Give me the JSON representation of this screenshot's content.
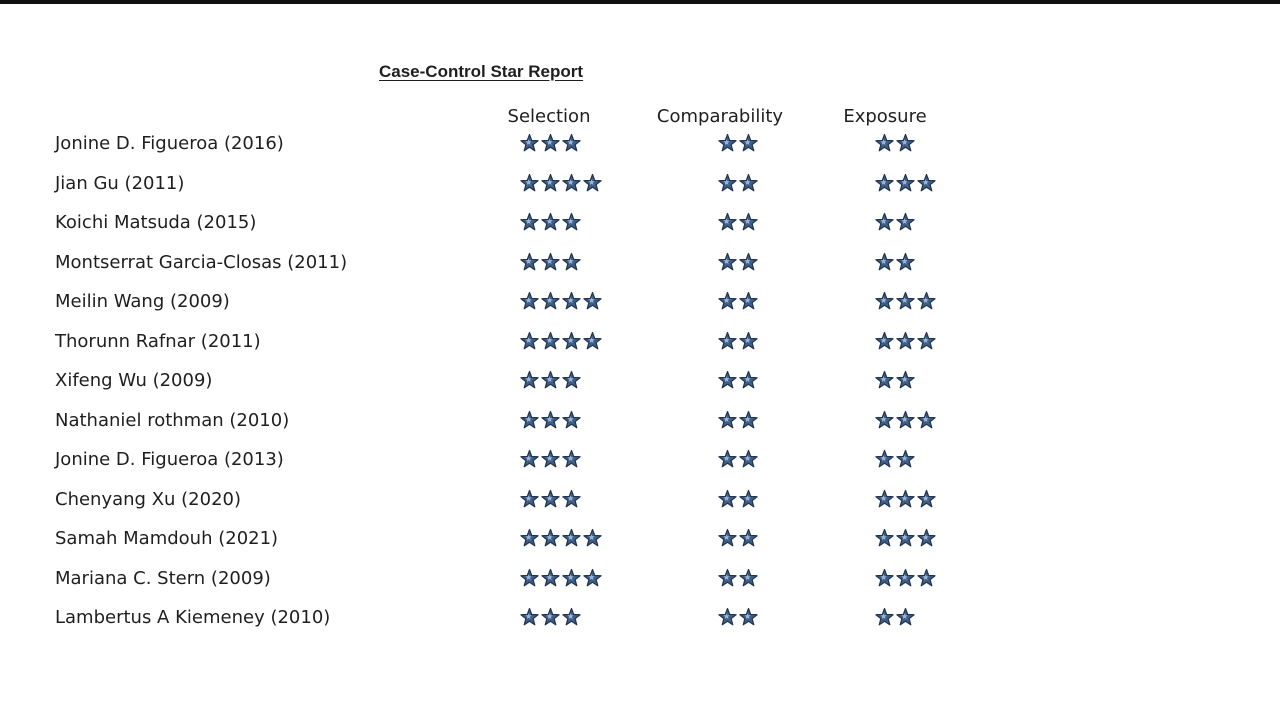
{
  "report": {
    "title": "Case-Control Star Report"
  },
  "columns": {
    "selection": "Selection",
    "comparability": "Comparability",
    "exposure": "Exposure"
  },
  "star_color": "#3f5f86",
  "rows": [
    {
      "study": "Jonine D. Figueroa (2016)",
      "selection": 3,
      "comparability": 2,
      "exposure": 2
    },
    {
      "study": "Jian Gu (2011)",
      "selection": 4,
      "comparability": 2,
      "exposure": 3
    },
    {
      "study": "Koichi Matsuda (2015)",
      "selection": 3,
      "comparability": 2,
      "exposure": 2
    },
    {
      "study": "Montserrat Garcia-Closas (2011)",
      "selection": 3,
      "comparability": 2,
      "exposure": 2
    },
    {
      "study": "Meilin Wang (2009)",
      "selection": 4,
      "comparability": 2,
      "exposure": 3
    },
    {
      "study": "Thorunn Rafnar (2011)",
      "selection": 4,
      "comparability": 2,
      "exposure": 3
    },
    {
      "study": "Xifeng Wu (2009)",
      "selection": 3,
      "comparability": 2,
      "exposure": 2
    },
    {
      "study": "Nathaniel rothman (2010)",
      "selection": 3,
      "comparability": 2,
      "exposure": 3
    },
    {
      "study": "Jonine D. Figueroa (2013)",
      "selection": 3,
      "comparability": 2,
      "exposure": 2
    },
    {
      "study": "Chenyang Xu (2020)",
      "selection": 3,
      "comparability": 2,
      "exposure": 3
    },
    {
      "study": "Samah Mamdouh (2021)",
      "selection": 4,
      "comparability": 2,
      "exposure": 3
    },
    {
      "study": "Mariana C. Stern (2009)",
      "selection": 4,
      "comparability": 2,
      "exposure": 3
    },
    {
      "study": "Lambertus A Kiemeney (2010)",
      "selection": 3,
      "comparability": 2,
      "exposure": 2
    }
  ]
}
